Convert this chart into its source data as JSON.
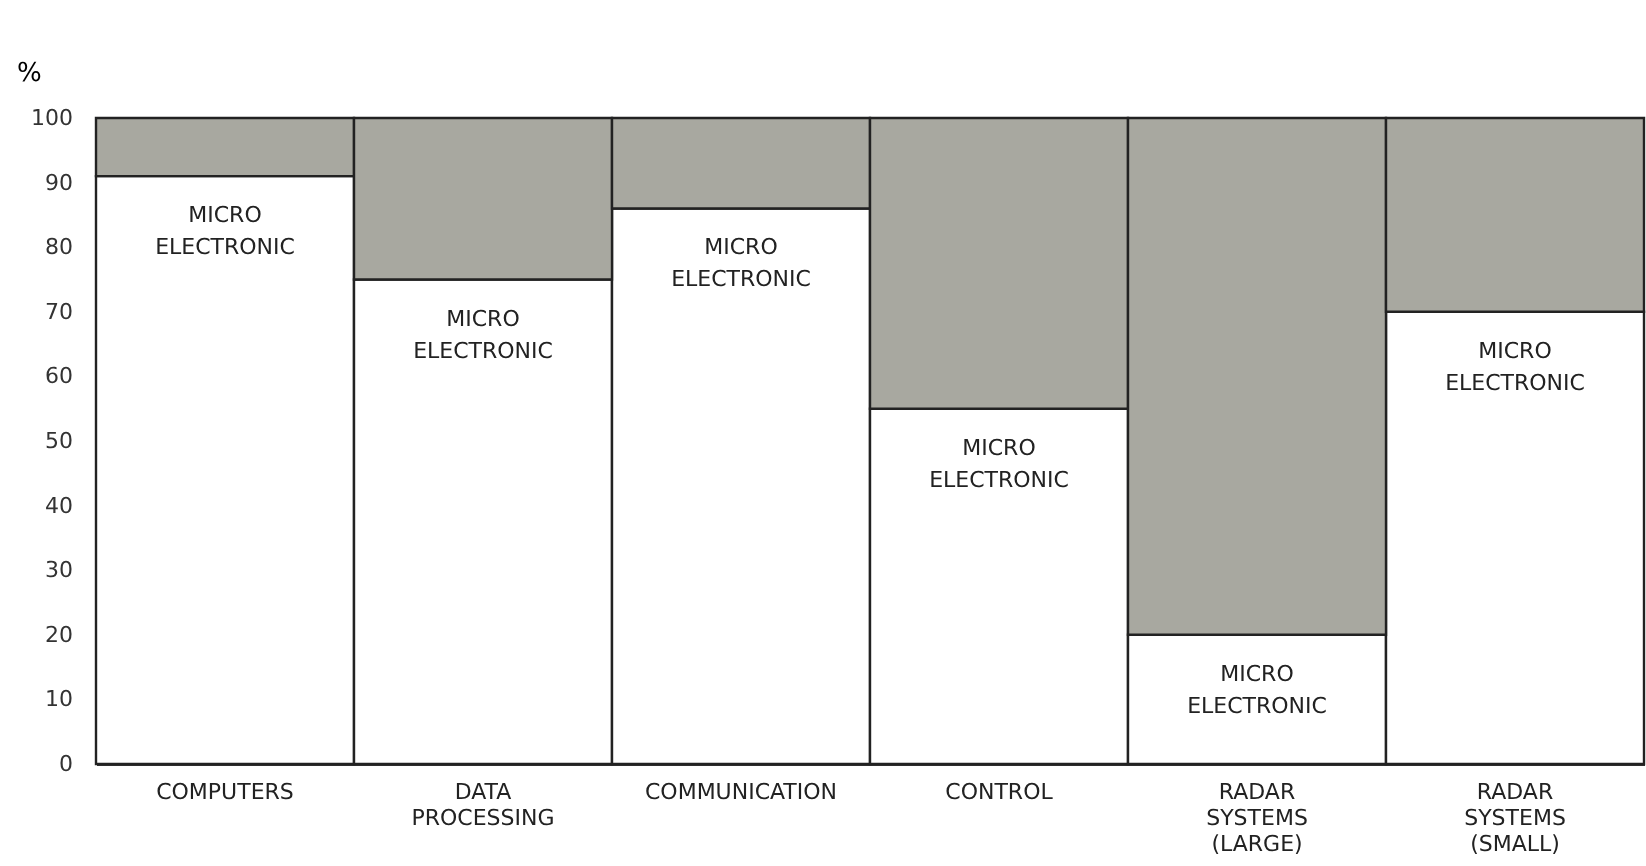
{
  "chart_data": {
    "type": "bar",
    "stacked": true,
    "ylabel": "%",
    "categories": [
      "COMPUTERS",
      "DATA PROCESSING",
      "COMMUNICATION",
      "CONTROL",
      "RADAR SYSTEMS (LARGE)",
      "RADAR SYSTEMS (SMALL)"
    ],
    "series": [
      {
        "name": "MICRO ELECTRONIC",
        "color": "#ffffff",
        "values": [
          91,
          75,
          86,
          55,
          20,
          70
        ]
      },
      {
        "color": "#a8a8a0",
        "values": [
          9,
          25,
          14,
          45,
          80,
          30
        ]
      }
    ],
    "ylim": [
      0,
      100
    ],
    "yticks": [
      0,
      10,
      20,
      30,
      40,
      50,
      60,
      70,
      80,
      90,
      100
    ]
  }
}
